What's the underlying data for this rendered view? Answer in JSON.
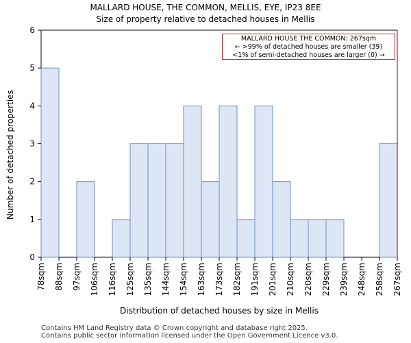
{
  "title": "MALLARD HOUSE, THE COMMON, MELLIS, EYE, IP23 8EE",
  "subtitle": "Size of property relative to detached houses in Mellis",
  "annotation": {
    "line1": "MALLARD HOUSE THE COMMON: 267sqm",
    "line2": "← >99% of detached houses are smaller (39)",
    "line3": "<1% of semi-detached houses are larger (0) →"
  },
  "footer": {
    "line1": "Contains HM Land Registry data © Crown copyright and database right 2025.",
    "line2": "Contains public sector information licensed under the Open Government Licence v3.0."
  },
  "colors": {
    "bar_fill": "#dce6f5",
    "bar_stroke": "#6c8fc7",
    "marker": "#b22222"
  },
  "chart_data": {
    "type": "bar",
    "title": "MALLARD HOUSE, THE COMMON, MELLIS, EYE, IP23 8EE",
    "subtitle": "Size of property relative to detached houses in Mellis",
    "xlabel": "Distribution of detached houses by size in Mellis",
    "ylabel": "Number of detached properties",
    "bin_edges": [
      "78sqm",
      "88sqm",
      "97sqm",
      "106sqm",
      "116sqm",
      "125sqm",
      "135sqm",
      "144sqm",
      "154sqm",
      "163sqm",
      "173sqm",
      "182sqm",
      "191sqm",
      "201sqm",
      "210sqm",
      "220sqm",
      "229sqm",
      "239sqm",
      "248sqm",
      "258sqm",
      "267sqm"
    ],
    "values": [
      5,
      0,
      2,
      0,
      1,
      3,
      3,
      3,
      4,
      2,
      4,
      1,
      4,
      2,
      1,
      1,
      1,
      0,
      0,
      3
    ],
    "ylim": [
      0,
      6
    ],
    "yticks": [
      0,
      1,
      2,
      3,
      4,
      5,
      6
    ],
    "marker_value": "267sqm",
    "grid": false
  }
}
